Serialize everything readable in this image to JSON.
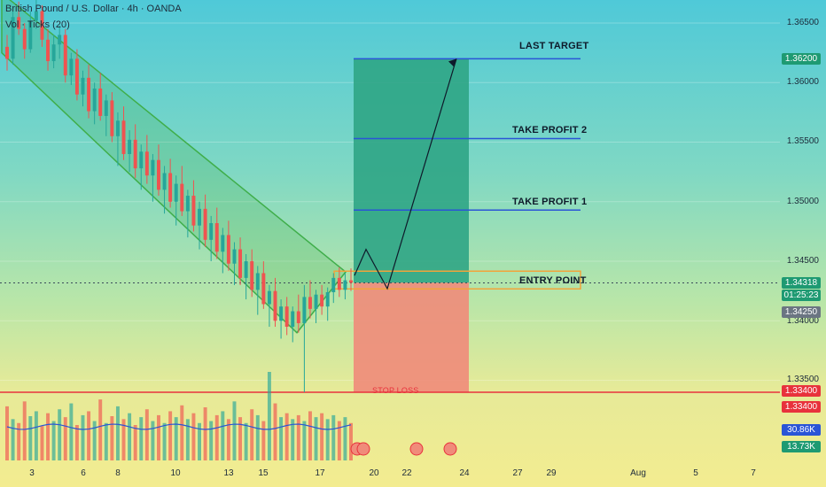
{
  "header": {
    "symbol_line": "British Pound / U.S. Dollar · 4h · OANDA",
    "volume_line": "Vol · Ticks (20)"
  },
  "annotations": {
    "last_target": "LAST TARGET",
    "take_profit_2": "TAKE PROFIT 2",
    "take_profit_1": "TAKE PROFIT 1",
    "entry_point": "ENTRY POINT",
    "stop_loss": "STOP LOSS"
  },
  "price_tags": {
    "target": "1.36200",
    "current_price": "1.34318",
    "countdown": "01:25:23",
    "prev_price": "1.34250",
    "stop_1": "1.33400",
    "stop_2": "1.33400",
    "vol_1": "30.86K",
    "vol_2": "13.73K"
  },
  "colors": {
    "target_zone": "#2fa585",
    "stop_zone": "#f08b7a",
    "channel": "#3fae4a",
    "levels": "#2a55d6",
    "stop_line": "#e8323c",
    "entry_box": "#f2a43a",
    "bull": "#26a69a",
    "bear": "#ef5350"
  },
  "chart_data": {
    "type": "candlestick",
    "instrument": "British Pound / U.S. Dollar",
    "timeframe": "4h",
    "source": "OANDA",
    "y_ticks": [
      "1.36500",
      "1.36000",
      "1.35500",
      "1.35000",
      "1.34500",
      "1.34000",
      "1.33500"
    ],
    "x_ticks": [
      "3",
      "6",
      "8",
      "10",
      "13",
      "15",
      "17",
      "20",
      "22",
      "24",
      "27",
      "29",
      "Aug",
      "5",
      "7"
    ],
    "ylim": [
      1.33,
      1.3665
    ],
    "levels": {
      "last_target": 1.362,
      "take_profit_2": 1.3553,
      "take_profit_1": 1.3493,
      "entry": 1.3432,
      "stop_loss": 1.334
    },
    "channel": {
      "upper": [
        [
          2,
          1.3675
        ],
        [
          390,
          1.3441
        ]
      ],
      "lower": [
        [
          2,
          1.3625
        ],
        [
          335,
          1.339
        ]
      ]
    },
    "projection_path": [
      [
        400,
        1.3438
      ],
      [
        413,
        1.346
      ],
      [
        437,
        1.3427
      ],
      [
        515,
        1.362
      ]
    ],
    "candles": [
      [
        1.363,
        1.364,
        1.361,
        1.362
      ],
      [
        1.362,
        1.366,
        1.3615,
        1.3655
      ],
      [
        1.3655,
        1.3668,
        1.364,
        1.3645
      ],
      [
        1.3645,
        1.365,
        1.362,
        1.3628
      ],
      [
        1.3628,
        1.366,
        1.3625,
        1.3652
      ],
      [
        1.3652,
        1.367,
        1.3645,
        1.366
      ],
      [
        1.366,
        1.3665,
        1.363,
        1.3636
      ],
      [
        1.3636,
        1.3645,
        1.361,
        1.3618
      ],
      [
        1.3618,
        1.364,
        1.3612,
        1.3632
      ],
      [
        1.3632,
        1.3648,
        1.362,
        1.364
      ],
      [
        1.364,
        1.3645,
        1.36,
        1.3606
      ],
      [
        1.3606,
        1.3625,
        1.3598,
        1.362
      ],
      [
        1.362,
        1.3628,
        1.3585,
        1.359
      ],
      [
        1.359,
        1.361,
        1.358,
        1.3604
      ],
      [
        1.3604,
        1.3615,
        1.357,
        1.3576
      ],
      [
        1.3576,
        1.36,
        1.3565,
        1.3595
      ],
      [
        1.3595,
        1.3608,
        1.3568,
        1.3572
      ],
      [
        1.3572,
        1.359,
        1.3555,
        1.3585
      ],
      [
        1.3585,
        1.3592,
        1.355,
        1.3555
      ],
      [
        1.3555,
        1.3575,
        1.353,
        1.3568
      ],
      [
        1.3568,
        1.358,
        1.3535,
        1.354
      ],
      [
        1.354,
        1.356,
        1.3525,
        1.3552
      ],
      [
        1.3552,
        1.3565,
        1.352,
        1.3528
      ],
      [
        1.3528,
        1.3548,
        1.351,
        1.3542
      ],
      [
        1.3542,
        1.3556,
        1.3515,
        1.3522
      ],
      [
        1.3522,
        1.354,
        1.35,
        1.3535
      ],
      [
        1.3535,
        1.3548,
        1.3505,
        1.351
      ],
      [
        1.351,
        1.353,
        1.349,
        1.3524
      ],
      [
        1.3524,
        1.3536,
        1.3495,
        1.35
      ],
      [
        1.35,
        1.3522,
        1.348,
        1.3515
      ],
      [
        1.3515,
        1.353,
        1.3488,
        1.3492
      ],
      [
        1.3492,
        1.351,
        1.347,
        1.3505
      ],
      [
        1.3505,
        1.3518,
        1.3475,
        1.348
      ],
      [
        1.348,
        1.35,
        1.346,
        1.3494
      ],
      [
        1.3494,
        1.3506,
        1.3462,
        1.3468
      ],
      [
        1.3468,
        1.3488,
        1.345,
        1.3482
      ],
      [
        1.3482,
        1.3495,
        1.3452,
        1.3458
      ],
      [
        1.3458,
        1.3478,
        1.344,
        1.3472
      ],
      [
        1.3472,
        1.3484,
        1.3442,
        1.3448
      ],
      [
        1.3448,
        1.3466,
        1.343,
        1.346
      ],
      [
        1.346,
        1.347,
        1.343,
        1.3436
      ],
      [
        1.3436,
        1.3456,
        1.3418,
        1.345
      ],
      [
        1.345,
        1.346,
        1.342,
        1.3426
      ],
      [
        1.3426,
        1.3446,
        1.3405,
        1.344
      ],
      [
        1.344,
        1.345,
        1.341,
        1.3414
      ],
      [
        1.3414,
        1.343,
        1.3395,
        1.3425
      ],
      [
        1.3425,
        1.3436,
        1.3395,
        1.34
      ],
      [
        1.34,
        1.3418,
        1.3385,
        1.3412
      ],
      [
        1.3412,
        1.342,
        1.3388,
        1.3395
      ],
      [
        1.3395,
        1.3412,
        1.3382,
        1.3408
      ],
      [
        1.3408,
        1.3422,
        1.339,
        1.3398
      ],
      [
        1.3398,
        1.343,
        1.334,
        1.342
      ],
      [
        1.342,
        1.3434,
        1.3402,
        1.341
      ],
      [
        1.341,
        1.3426,
        1.3398,
        1.3422
      ],
      [
        1.3422,
        1.343,
        1.3405,
        1.3412
      ],
      [
        1.3412,
        1.3428,
        1.34,
        1.3424
      ],
      [
        1.3424,
        1.344,
        1.3415,
        1.3436
      ],
      [
        1.3436,
        1.3445,
        1.342,
        1.3426
      ],
      [
        1.3426,
        1.344,
        1.3418,
        1.3434
      ],
      [
        1.3434,
        1.3444,
        1.3425,
        1.3432
      ]
    ],
    "volume": [
      55,
      42,
      38,
      60,
      45,
      50,
      35,
      48,
      40,
      52,
      44,
      58,
      36,
      46,
      50,
      40,
      62,
      38,
      45,
      55,
      42,
      48,
      36,
      44,
      52,
      40,
      46,
      38,
      50,
      44,
      56,
      42,
      48,
      38,
      54,
      40,
      46,
      50,
      42,
      60,
      44,
      38,
      52,
      46,
      40,
      90,
      58,
      44,
      48,
      42,
      46,
      40,
      50,
      44,
      48,
      42,
      46,
      40,
      44,
      38
    ]
  }
}
